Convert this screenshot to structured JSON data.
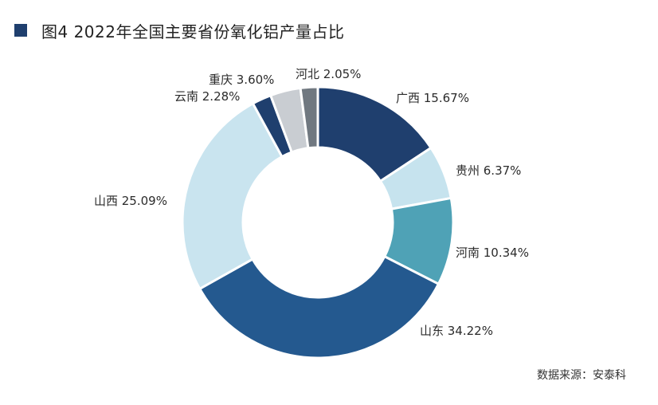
{
  "title": "图4  2022年全国主要省份氧化铝产量占比",
  "source": "数据来源：安泰科",
  "chart_data": {
    "type": "pie",
    "variant": "donut",
    "title": "图4  2022年全国主要省份氧化铝产量占比",
    "slices": [
      {
        "name": "广西",
        "value": 15.67,
        "label": "广西 15.67%",
        "color": "#1f3f6e"
      },
      {
        "name": "贵州",
        "value": 6.37,
        "label": "贵州 6.37%",
        "color": "#c6e3ee"
      },
      {
        "name": "河南",
        "value": 10.34,
        "label": "河南 10.34%",
        "color": "#4fa2b6"
      },
      {
        "name": "山东",
        "value": 34.22,
        "label": "山东 34.22%",
        "color": "#24598f"
      },
      {
        "name": "山西",
        "value": 25.09,
        "label": "山西 25.09%",
        "color": "#c9e4ef"
      },
      {
        "name": "云南",
        "value": 2.28,
        "label": "云南 2.28%",
        "color": "#1f3f6e"
      },
      {
        "name": "重庆",
        "value": 3.6,
        "label": "重庆 3.60%",
        "color": "#c9cdd2"
      },
      {
        "name": "河北",
        "value": 2.05,
        "label": "河北 2.05%",
        "color": "#707880"
      }
    ],
    "legend": "none"
  }
}
